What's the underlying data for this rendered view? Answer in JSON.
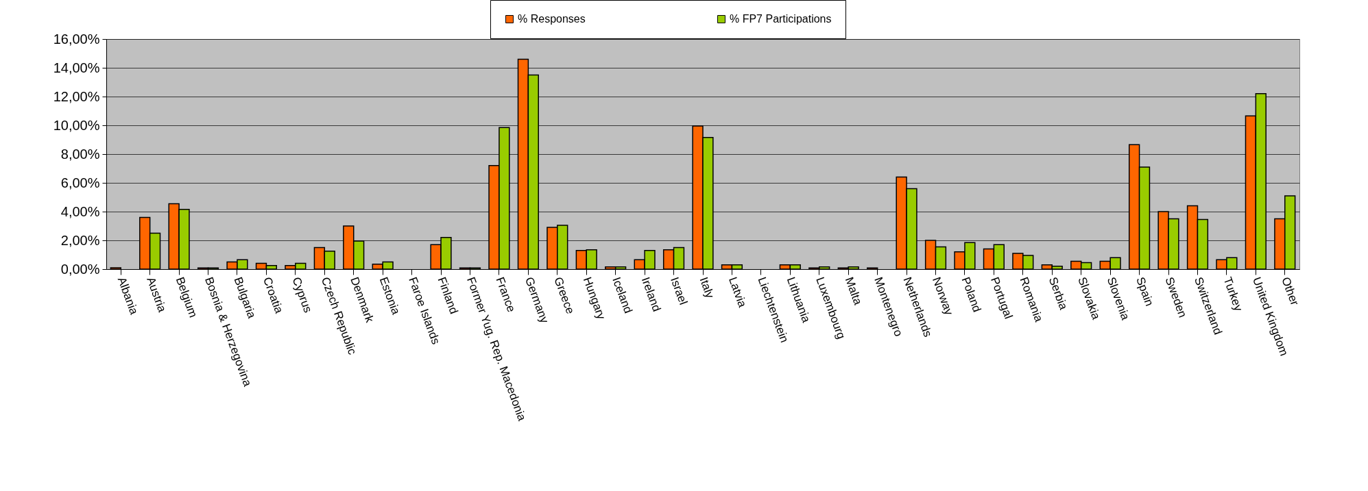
{
  "chart_data": {
    "type": "bar",
    "categories": [
      "Albania",
      "Austria",
      "Belgium",
      "Bosnia & Herzegovina",
      "Bulgaria",
      "Croatia",
      "Cyprus",
      "Czech Republic",
      "Denmark",
      "Estonia",
      "Faroe Islands",
      "Finland",
      "Former Yug. Rep. Macedonia",
      "France",
      "Germany",
      "Greece",
      "Hungary",
      "Iceland",
      "Ireland",
      "Israel",
      "Italy",
      "Latvia",
      "Liechtenstein",
      "Lithuania",
      "Luxembourg",
      "Malta",
      "Montenegro",
      "Netherlands",
      "Norway",
      "Poland",
      "Portugal",
      "Romania",
      "Serbia",
      "Slovakia",
      "Slovenia",
      "Spain",
      "Sweden",
      "Switzerland",
      "Turkey",
      "United Kingdom",
      "Other"
    ],
    "series": [
      {
        "name": "% Responses",
        "color": "#ff6600",
        "values": [
          0.1,
          3.6,
          4.55,
          0.08,
          0.5,
          0.4,
          0.25,
          1.5,
          3.0,
          0.35,
          null,
          1.7,
          0.08,
          7.2,
          14.6,
          2.9,
          1.3,
          0.15,
          0.65,
          1.35,
          9.95,
          0.3,
          null,
          0.3,
          0.08,
          0.08,
          0.08,
          6.4,
          2.0,
          1.2,
          1.4,
          1.1,
          0.3,
          0.55,
          0.55,
          8.65,
          4.0,
          4.4,
          0.65,
          10.65,
          3.5
        ]
      },
      {
        "name": "% FP7 Participations",
        "color": "#99cc00",
        "values": [
          null,
          2.5,
          4.15,
          0.08,
          0.65,
          0.25,
          0.4,
          1.25,
          1.95,
          0.5,
          null,
          2.2,
          0.08,
          9.85,
          13.5,
          3.05,
          1.35,
          0.15,
          1.3,
          1.5,
          9.15,
          0.3,
          null,
          0.3,
          0.15,
          0.15,
          null,
          5.6,
          1.55,
          1.85,
          1.7,
          0.95,
          0.2,
          0.45,
          0.8,
          7.1,
          3.5,
          3.45,
          0.8,
          12.2,
          5.1
        ]
      }
    ],
    "ylim": [
      0,
      16
    ],
    "yticks": [
      {
        "value": 0,
        "label": "0,00%"
      },
      {
        "value": 2,
        "label": "2,00%"
      },
      {
        "value": 4,
        "label": "4,00%"
      },
      {
        "value": 6,
        "label": "6,00%"
      },
      {
        "value": 8,
        "label": "8,00%"
      },
      {
        "value": 10,
        "label": "10,00%"
      },
      {
        "value": 12,
        "label": "12,00%"
      },
      {
        "value": 14,
        "label": "14,00%"
      },
      {
        "value": 16,
        "label": "16,00%"
      }
    ],
    "grid": "y",
    "legend": "top"
  }
}
